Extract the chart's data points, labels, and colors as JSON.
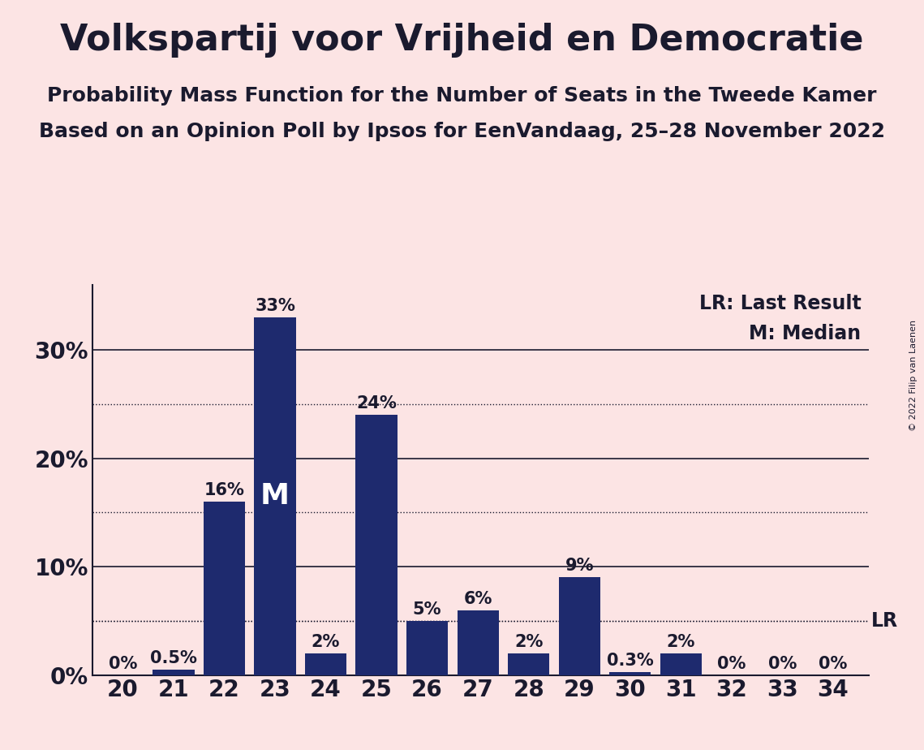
{
  "title": "Volkspartij voor Vrijheid en Democratie",
  "subtitle1": "Probability Mass Function for the Number of Seats in the Tweede Kamer",
  "subtitle2": "Based on an Opinion Poll by Ipsos for EenVandaag, 25–28 November 2022",
  "copyright": "© 2022 Filip van Laenen",
  "seats": [
    20,
    21,
    22,
    23,
    24,
    25,
    26,
    27,
    28,
    29,
    30,
    31,
    32,
    33,
    34
  ],
  "probabilities": [
    0.0,
    0.5,
    16.0,
    33.0,
    2.0,
    24.0,
    5.0,
    6.0,
    2.0,
    9.0,
    0.3,
    2.0,
    0.0,
    0.0,
    0.0
  ],
  "bar_color": "#1e2a6e",
  "background_color": "#fce4e4",
  "text_color": "#1a1a2e",
  "median_seat": 23,
  "lr_seat": 34,
  "solid_lines": [
    0,
    10,
    20,
    30
  ],
  "dotted_lines": [
    5,
    15,
    25
  ],
  "lr_label": "LR: Last Result",
  "m_label": "M: Median",
  "lr_annotation": "LR",
  "m_annotation": "M",
  "title_fontsize": 32,
  "subtitle_fontsize": 18,
  "bar_label_fontsize": 15,
  "tick_fontsize": 20,
  "legend_fontsize": 17,
  "ylim_max": 36,
  "bar_width": 0.82
}
